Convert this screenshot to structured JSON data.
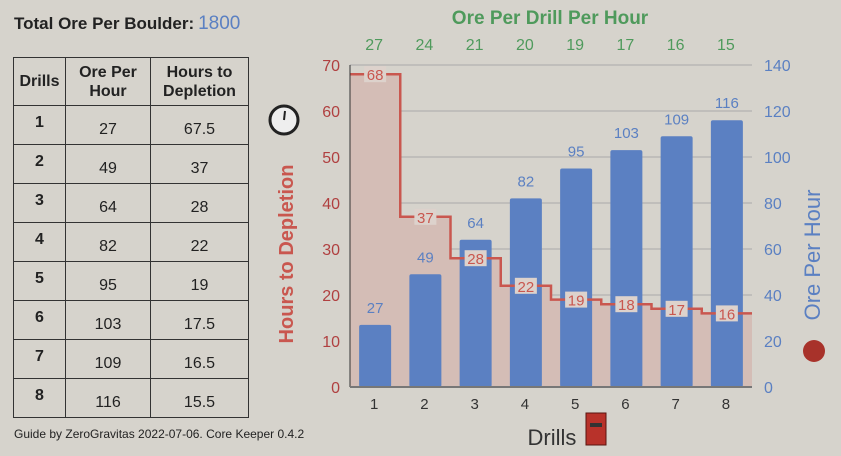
{
  "header": {
    "total_label": "Total Ore Per Boulder:",
    "total_value": "1800"
  },
  "table": {
    "headers": [
      "Drills",
      "Ore Per Hour",
      "Hours to Depletion"
    ],
    "rows": [
      [
        "1",
        "27",
        "67.5"
      ],
      [
        "2",
        "49",
        "37"
      ],
      [
        "3",
        "64",
        "28"
      ],
      [
        "4",
        "82",
        "22"
      ],
      [
        "5",
        "95",
        "19"
      ],
      [
        "6",
        "103",
        "17.5"
      ],
      [
        "7",
        "109",
        "16.5"
      ],
      [
        "8",
        "116",
        "15.5"
      ]
    ]
  },
  "credit": "Guide by  ZeroGravitas 2022-07-06. Core Keeper 0.4.2",
  "chart_data": {
    "type": "bar",
    "title": "Ore Per Drill Per Hour",
    "categories": [
      "1",
      "2",
      "3",
      "4",
      "5",
      "6",
      "7",
      "8"
    ],
    "ore_per_drill": [
      "27",
      "24",
      "21",
      "20",
      "19",
      "17",
      "16",
      "15"
    ],
    "xlabel": "Drills",
    "ylabel_left": "Hours to Depletion",
    "ylabel_right": "Ore Per Hour",
    "ylim_left": [
      0,
      70
    ],
    "ylim_right": [
      0,
      140
    ],
    "yticks_left": [
      0,
      10,
      20,
      30,
      40,
      50,
      60,
      70
    ],
    "yticks_right": [
      0,
      20,
      40,
      60,
      80,
      100,
      120,
      140
    ],
    "series": [
      {
        "name": "Ore Per Hour",
        "type": "bar",
        "axis": "right",
        "values": [
          27,
          49,
          64,
          82,
          95,
          103,
          109,
          116
        ],
        "color": "#5b80c2"
      },
      {
        "name": "Hours to Depletion",
        "type": "step-area",
        "axis": "left",
        "values": [
          68,
          37,
          28,
          22,
          19,
          18,
          17,
          16
        ],
        "color": "#c9574f"
      }
    ],
    "grid": true
  }
}
